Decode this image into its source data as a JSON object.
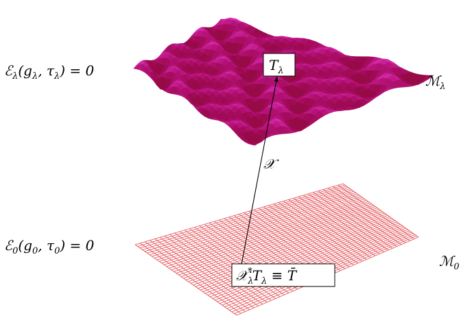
{
  "labels": {
    "energy_lambda": [
      {
        "t": "ℰ"
      },
      {
        "sub": "λ"
      },
      {
        "t": "(g"
      },
      {
        "sub": "λ"
      },
      {
        "t": ", τ"
      },
      {
        "sub": "λ"
      },
      {
        "t": ") = 0"
      }
    ],
    "energy_zero": [
      {
        "t": "ℰ"
      },
      {
        "sub": "0"
      },
      {
        "t": "(g"
      },
      {
        "sub": "0"
      },
      {
        "t": ", τ"
      },
      {
        "sub": "0"
      },
      {
        "t": ") = 0"
      }
    ],
    "manifold_lambda": [
      {
        "t": "ℳ"
      },
      {
        "sub": "λ"
      }
    ],
    "manifold_zero": [
      {
        "t": "ℳ"
      },
      {
        "sub": "0"
      }
    ],
    "map": [
      {
        "t": "𝒳"
      }
    ],
    "point_lambda": [
      {
        "t": "T"
      },
      {
        "sub": "λ"
      }
    ],
    "pullback": [
      {
        "t": "𝒳"
      },
      {
        "sub": "λ"
      },
      {
        "sup": "*"
      },
      {
        "t": "T"
      },
      {
        "sub": "λ"
      },
      {
        "t": " ≡ T̄"
      }
    ]
  }
}
